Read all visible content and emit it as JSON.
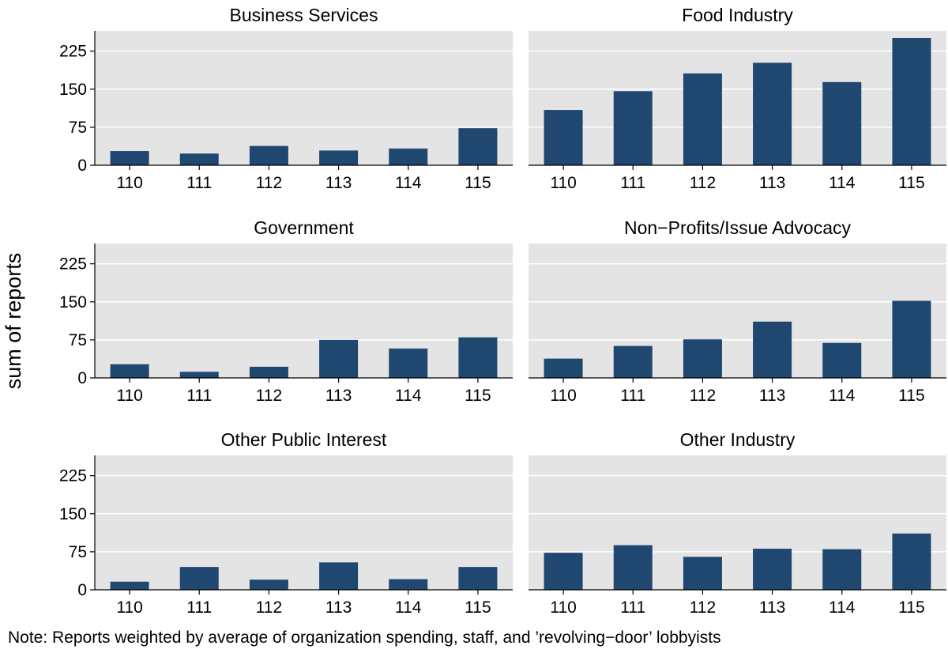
{
  "ylabel": "sum of reports",
  "note": "Note: Reports weighted by average of organization spending, staff, and ’revolving−door’ lobbyists",
  "colors": {
    "bar": "#1f4770",
    "panel_bg": "#e4e4e4",
    "grid": "#ffffff"
  },
  "chart_data": [
    {
      "type": "bar",
      "title": "Business Services",
      "categories": [
        "110",
        "111",
        "112",
        "113",
        "114",
        "115"
      ],
      "values": [
        28,
        23,
        38,
        29,
        33,
        73
      ],
      "yticks": [
        "0",
        "75",
        "150",
        "225"
      ],
      "ylim": [
        0,
        265
      ]
    },
    {
      "type": "bar",
      "title": "Food Industry",
      "categories": [
        "110",
        "111",
        "112",
        "113",
        "114",
        "115"
      ],
      "values": [
        109,
        146,
        181,
        202,
        164,
        251
      ],
      "yticks": [
        "0",
        "75",
        "150",
        "225"
      ],
      "ylim": [
        0,
        265
      ]
    },
    {
      "type": "bar",
      "title": "Government",
      "categories": [
        "110",
        "111",
        "112",
        "113",
        "114",
        "115"
      ],
      "values": [
        27,
        12,
        22,
        75,
        58,
        80
      ],
      "yticks": [
        "0",
        "75",
        "150",
        "225"
      ],
      "ylim": [
        0,
        265
      ]
    },
    {
      "type": "bar",
      "title": "Non−Profits/Issue Advocacy",
      "categories": [
        "110",
        "111",
        "112",
        "113",
        "114",
        "115"
      ],
      "values": [
        38,
        63,
        76,
        111,
        69,
        152
      ],
      "yticks": [
        "0",
        "75",
        "150",
        "225"
      ],
      "ylim": [
        0,
        265
      ]
    },
    {
      "type": "bar",
      "title": "Other Public Interest",
      "categories": [
        "110",
        "111",
        "112",
        "113",
        "114",
        "115"
      ],
      "values": [
        16,
        45,
        20,
        54,
        21,
        45
      ],
      "yticks": [
        "0",
        "75",
        "150",
        "225"
      ],
      "ylim": [
        0,
        265
      ]
    },
    {
      "type": "bar",
      "title": "Other Industry",
      "categories": [
        "110",
        "111",
        "112",
        "113",
        "114",
        "115"
      ],
      "values": [
        73,
        88,
        65,
        81,
        80,
        111
      ],
      "yticks": [
        "0",
        "75",
        "150",
        "225"
      ],
      "ylim": [
        0,
        265
      ]
    }
  ]
}
